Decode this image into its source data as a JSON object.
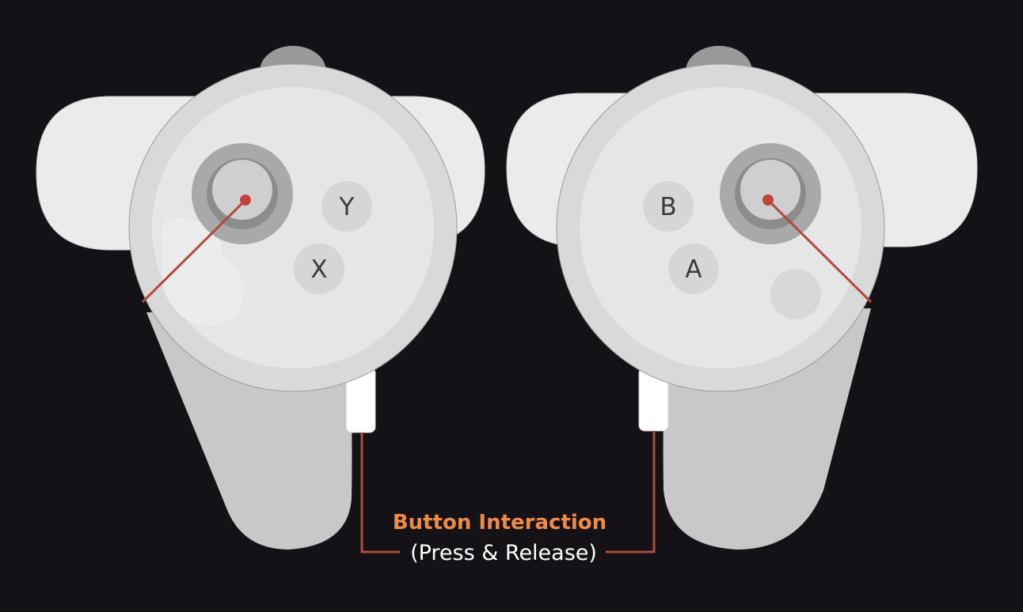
{
  "left_controller": {
    "buttons": [
      "Y",
      "X"
    ]
  },
  "right_controller": {
    "buttons": [
      "B",
      "A"
    ]
  },
  "callout": {
    "title": "Button Interaction",
    "subtitle": "(Press & Release)"
  },
  "colors": {
    "background": "#141216",
    "controller_light": "#e6e6e6",
    "controller_mid": "#d8d8d8",
    "grip": "#c8c8c8",
    "thumbstick_ring": "#a9a9a9",
    "leader_line": "#b14a3e",
    "title_accent": "#ef8a4a"
  }
}
